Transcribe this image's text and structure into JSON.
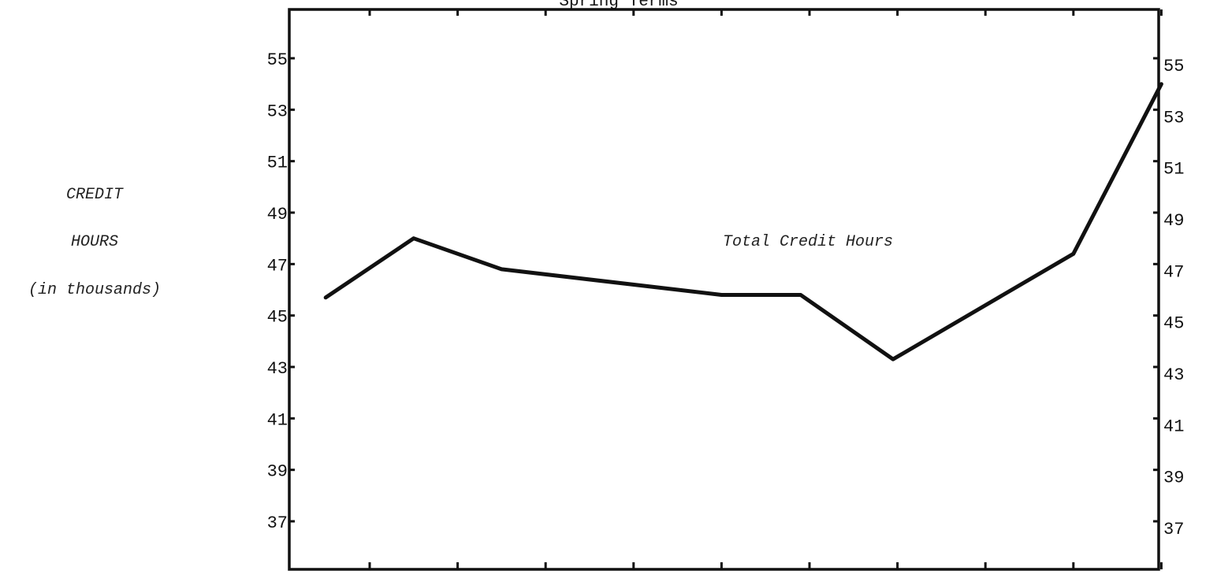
{
  "chart_data": {
    "type": "line",
    "title": "Spring Terms",
    "ylabel": [
      "CREDIT",
      "HOURS",
      "(in thousands)"
    ],
    "xlabel": "",
    "ylim": [
      35,
      57
    ],
    "yticks": [
      37,
      39,
      41,
      43,
      45,
      47,
      49,
      51,
      53,
      55
    ],
    "x_tick_count": 10,
    "grid": false,
    "series": [
      {
        "name": "Total Credit Hours",
        "x": [
          0.5,
          1.5,
          2.5,
          5.0,
          5.9,
          6.95,
          9.0,
          10.0
        ],
        "values": [
          45.7,
          48.0,
          46.8,
          45.8,
          45.8,
          43.3,
          47.4,
          54.0
        ]
      }
    ]
  }
}
